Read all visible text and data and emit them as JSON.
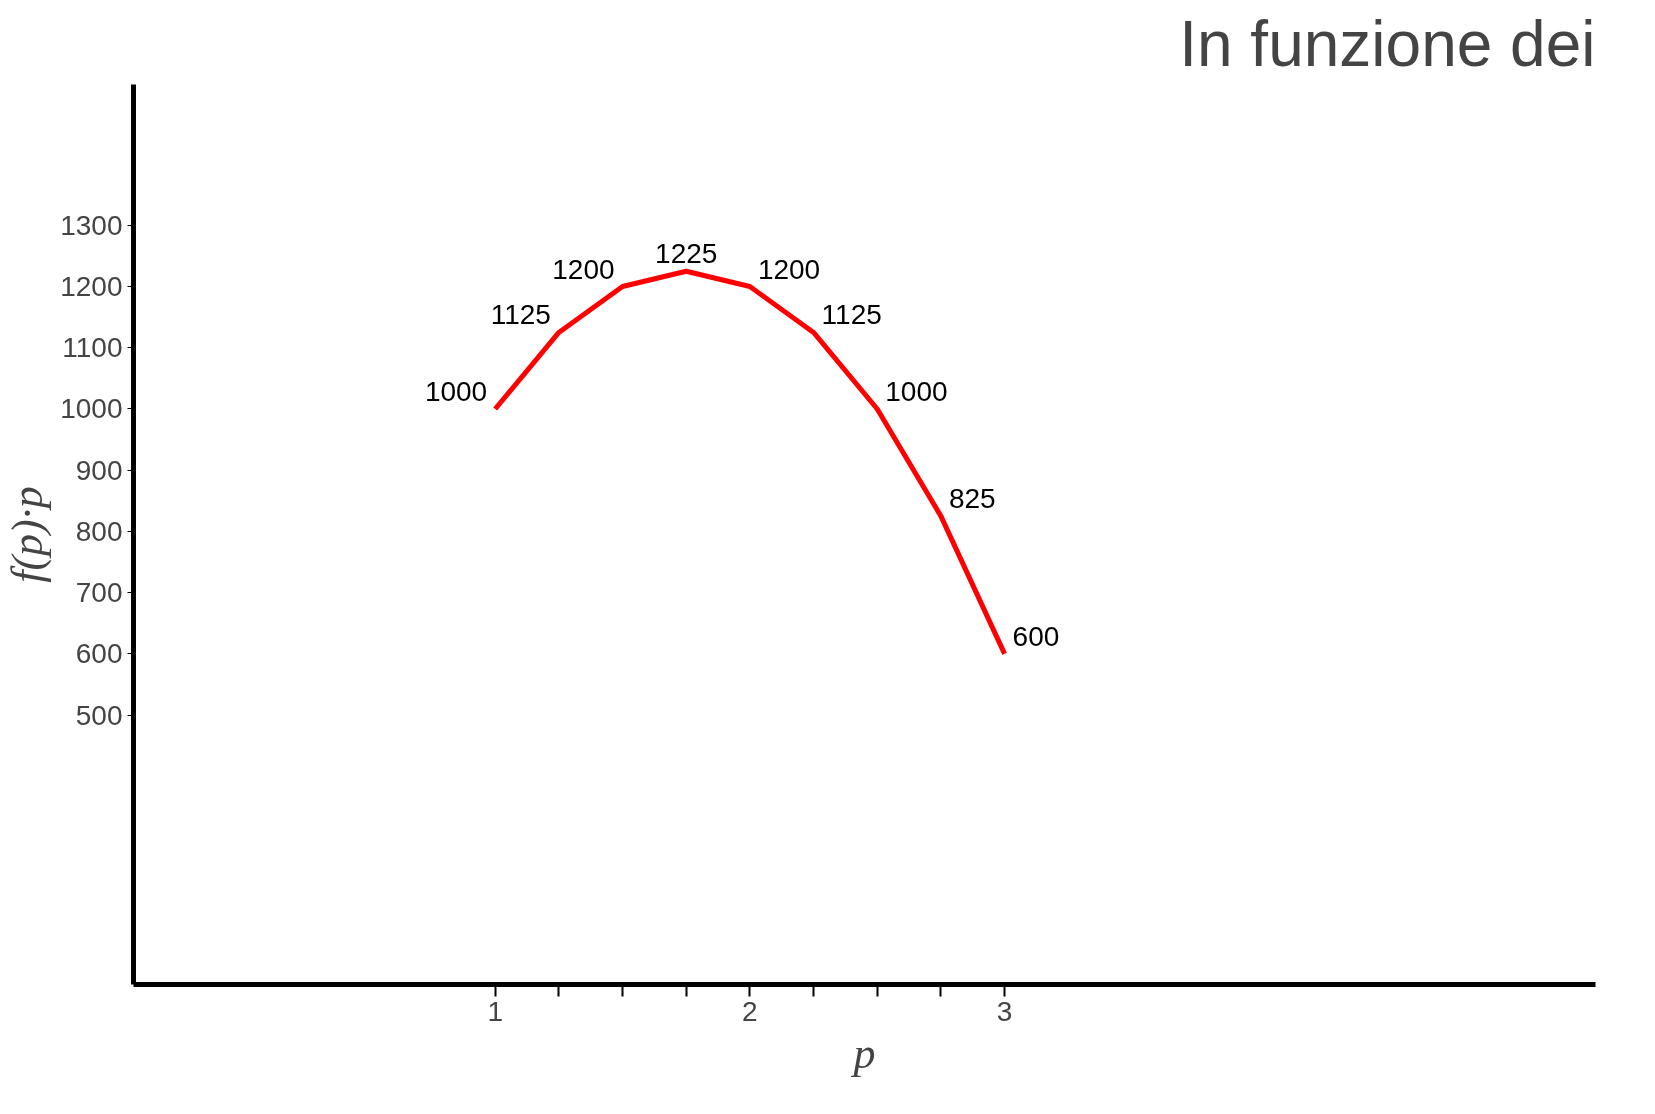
{
  "chart_data": {
    "type": "line",
    "title": "In funzione dei",
    "xlabel": "p",
    "ylabel": "f(p)·p",
    "x": [
      1,
      1.25,
      1.5,
      1.75,
      2,
      2.25,
      2.5,
      2.75,
      3
    ],
    "series": [
      {
        "color": "#ff0000",
        "values": [
          1000,
          1125,
          1200,
          1225,
          1200,
          1125,
          1000,
          825,
          600
        ]
      }
    ],
    "xlim": [
      -0.42,
      5.32
    ],
    "ylim": [
      60,
      1530
    ],
    "xticks": [
      1,
      {
        "value": 1.25,
        "label": null
      },
      {
        "value": 1.5,
        "label": null
      },
      {
        "value": 1.75,
        "label": null
      },
      2,
      {
        "value": 2.25,
        "label": null
      },
      {
        "value": 2.5,
        "label": null
      },
      {
        "value": 2.75,
        "label": null
      },
      3
    ],
    "yticks": [
      500,
      600,
      700,
      800,
      900,
      1000,
      1100,
      1200,
      1300
    ],
    "data_labels": true,
    "grid": false,
    "marker": "none",
    "line_style": "solid"
  }
}
